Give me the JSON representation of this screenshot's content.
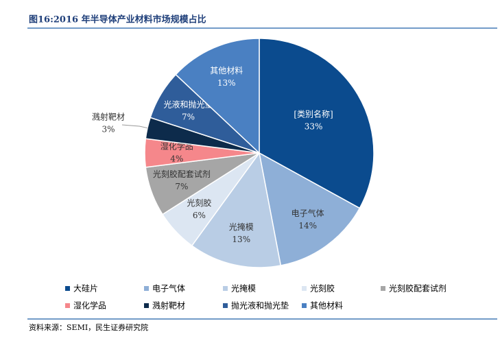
{
  "chart_data": {
    "type": "pie",
    "title": "图16:2016 年半导体产业材料市场规模占比",
    "source": "资料来源：SEMI，民生证券研究院",
    "categories": [
      "大硅片",
      "电子气体",
      "光掩模",
      "光刻胶",
      "光刻胶配套试剂",
      "湿化学品",
      "溅射靶材",
      "抛光液和抛光垫",
      "其他材料"
    ],
    "slice_labels": [
      "[类别名称]",
      "电子气体",
      "光掩模",
      "光刻胶",
      "光刻胶配套试剂",
      "湿化学品",
      "溅射靶材",
      "光液和抛光垫",
      "其他材料"
    ],
    "values": [
      33,
      14,
      13,
      6,
      7,
      4,
      3,
      7,
      13
    ],
    "value_labels": [
      "33%",
      "14%",
      "13%",
      "6%",
      "7%",
      "4%",
      "3%",
      "7%",
      "13%"
    ],
    "colors": [
      "#0b4b8e",
      "#8eafd7",
      "#b9cde5",
      "#dce6f2",
      "#a6a6a6",
      "#f5878b",
      "#0d2b4b",
      "#2f5d9a",
      "#4a80c2"
    ]
  }
}
